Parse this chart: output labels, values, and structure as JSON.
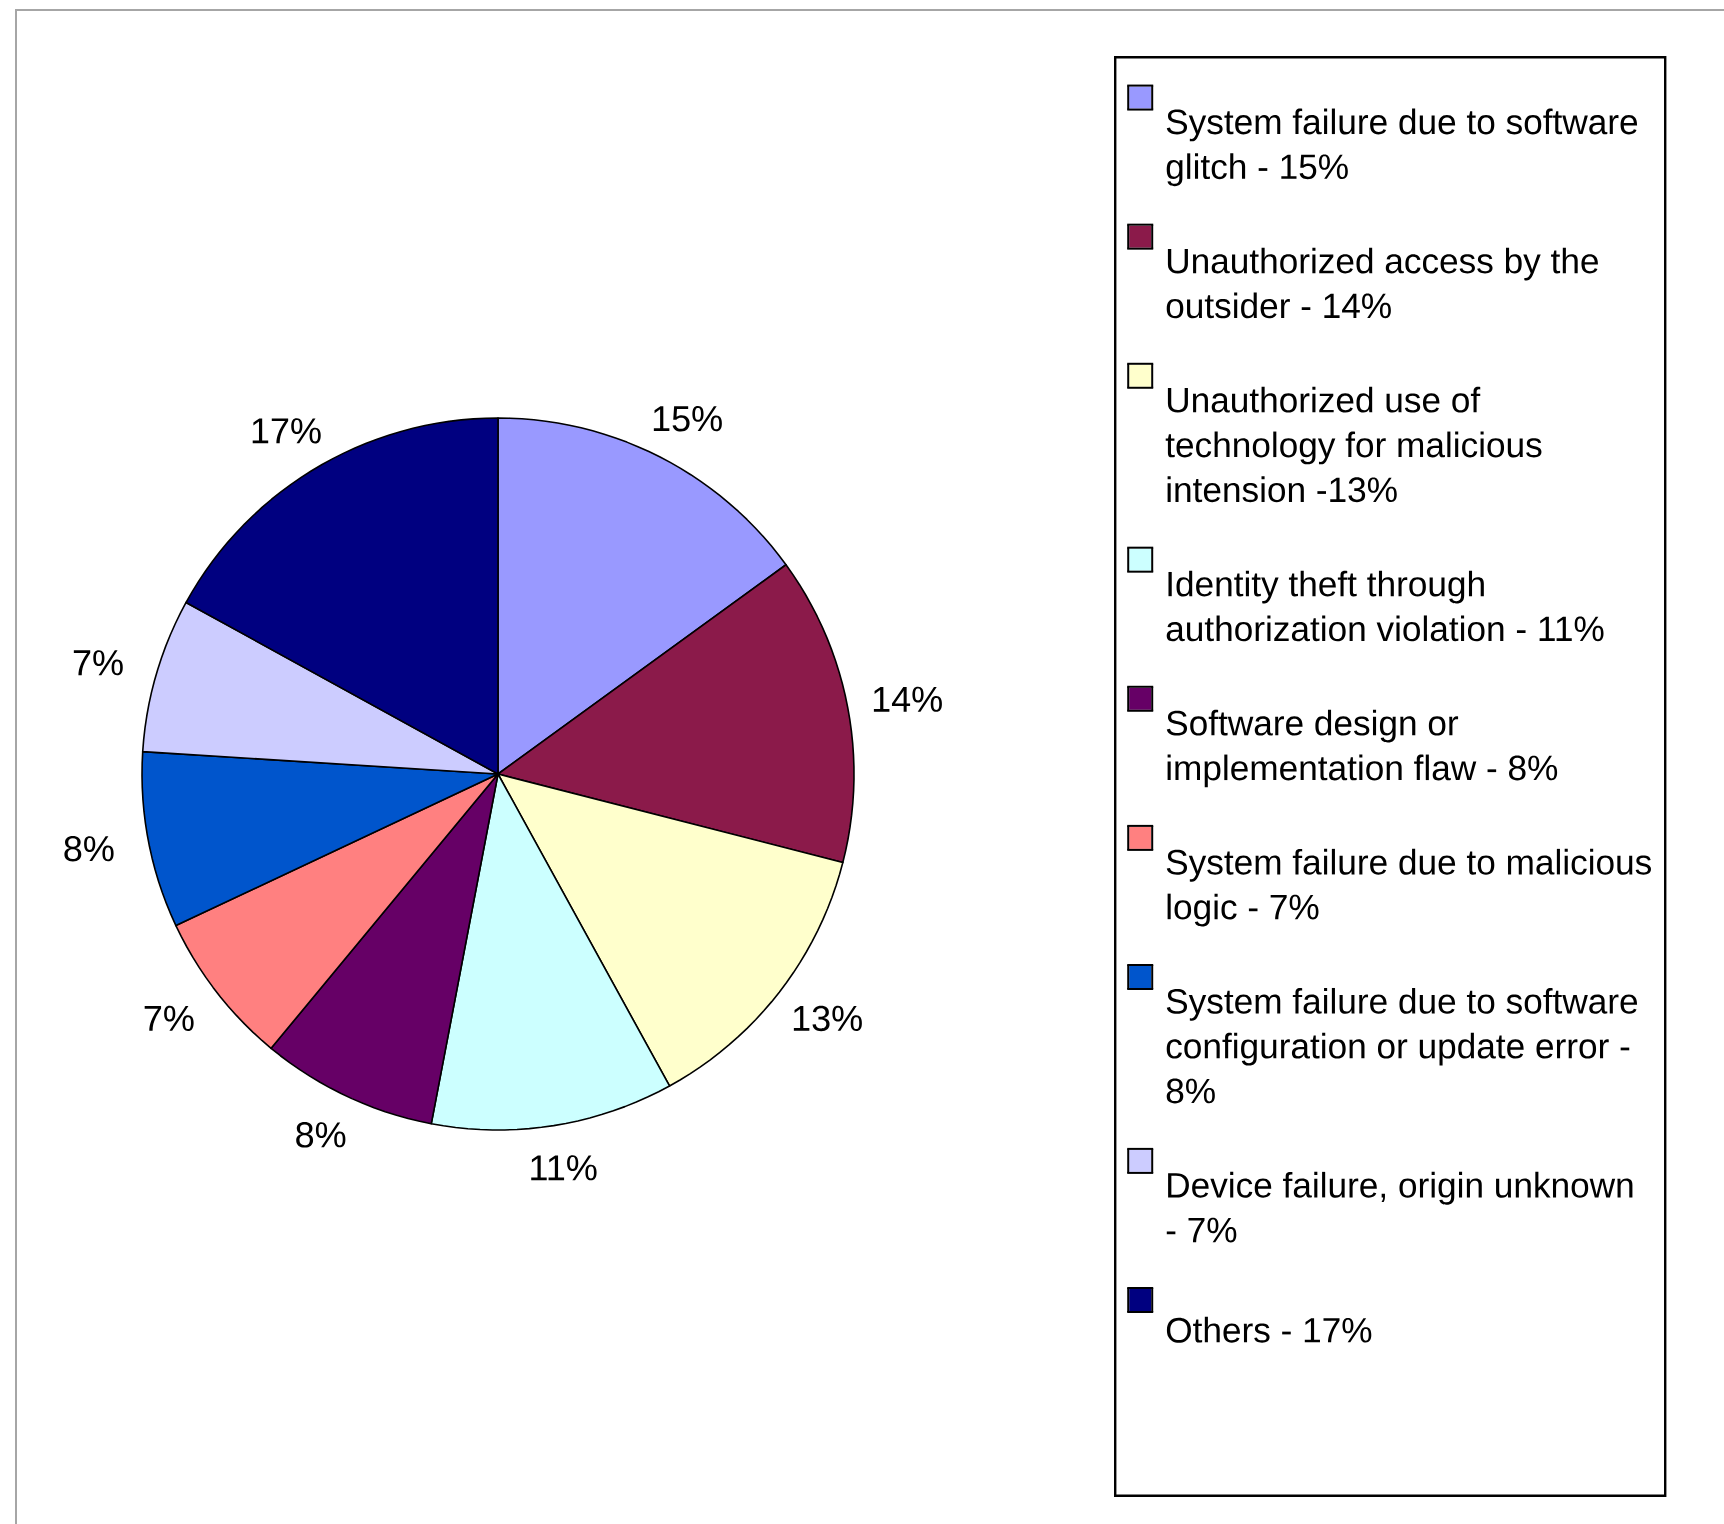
{
  "chart_data": {
    "type": "pie",
    "categories": [
      "System failure due to software glitch - 15%",
      "Unauthorized access by the outsider - 14%",
      "Unauthorized use of technology for malicious intension -13%",
      "Identity theft through authorization violation - 11%",
      "Software design or implementation flaw - 8%",
      "System failure due to malicious logic - 7%",
      "System failure due to software configuration or update error - 8%",
      "Device failure, origin unknown - 7%",
      "Others - 17%"
    ],
    "values": [
      15,
      14,
      13,
      11,
      8,
      7,
      8,
      7,
      17
    ],
    "value_labels": [
      "15%",
      "14%",
      "13%",
      "11%",
      "8%",
      "7%",
      "8%",
      "7%",
      "17%"
    ],
    "colors": [
      "#9999ff",
      "#8b1a4a",
      "#ffffcc",
      "#ccffff",
      "#660066",
      "#ff8080",
      "#0055cc",
      "#ccccff",
      "#000080"
    ],
    "legend": "right"
  }
}
